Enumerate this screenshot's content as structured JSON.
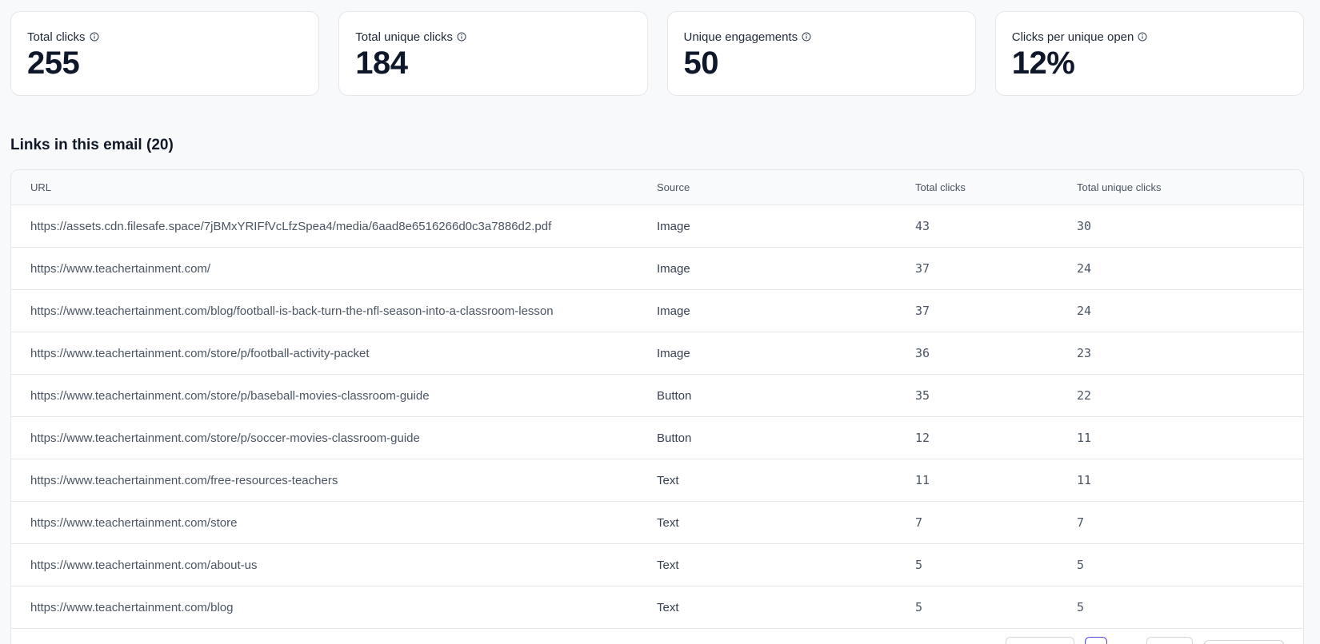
{
  "stats": [
    {
      "label": "Total clicks",
      "value": "255",
      "icon": "info-icon"
    },
    {
      "label": "Total unique clicks",
      "value": "184",
      "icon": "info-icon"
    },
    {
      "label": "Unique engagements",
      "value": "50",
      "icon": "info-icon"
    },
    {
      "label": "Clicks per unique open",
      "value": "12%",
      "icon": "info-icon"
    }
  ],
  "links_section": {
    "title": "Links in this email (20)"
  },
  "table": {
    "headers": {
      "url": "URL",
      "source": "Source",
      "total_clicks": "Total clicks",
      "total_unique_clicks": "Total unique clicks"
    },
    "rows": [
      {
        "url": "https://assets.cdn.filesafe.space/7jBMxYRIFfVcLfzSpea4/media/6aad8e6516266d0c3a7886d2.pdf",
        "source": "Image",
        "total_clicks": "43",
        "total_unique_clicks": "30"
      },
      {
        "url": "https://www.teachertainment.com/",
        "source": "Image",
        "total_clicks": "37",
        "total_unique_clicks": "24"
      },
      {
        "url": "https://www.teachertainment.com/blog/football-is-back-turn-the-nfl-season-into-a-classroom-lesson",
        "source": "Image",
        "total_clicks": "37",
        "total_unique_clicks": "24"
      },
      {
        "url": "https://www.teachertainment.com/store/p/football-activity-packet",
        "source": "Image",
        "total_clicks": "36",
        "total_unique_clicks": "23"
      },
      {
        "url": "https://www.teachertainment.com/store/p/baseball-movies-classroom-guide",
        "source": "Button",
        "total_clicks": "35",
        "total_unique_clicks": "22"
      },
      {
        "url": "https://www.teachertainment.com/store/p/soccer-movies-classroom-guide",
        "source": "Button",
        "total_clicks": "12",
        "total_unique_clicks": "11"
      },
      {
        "url": "https://www.teachertainment.com/free-resources-teachers",
        "source": "Text",
        "total_clicks": "11",
        "total_unique_clicks": "11"
      },
      {
        "url": "https://www.teachertainment.com/store",
        "source": "Text",
        "total_clicks": "7",
        "total_unique_clicks": "7"
      },
      {
        "url": "https://www.teachertainment.com/about-us",
        "source": "Text",
        "total_clicks": "5",
        "total_unique_clicks": "5"
      },
      {
        "url": "https://www.teachertainment.com/blog",
        "source": "Text",
        "total_clicks": "5",
        "total_unique_clicks": "5"
      }
    ]
  },
  "colors": {
    "background": "#f8f9fb",
    "card": "#ffffff",
    "border": "#e5e7eb",
    "text_primary": "#111827",
    "text_muted": "#4b5563",
    "accent": "#4f46e5"
  }
}
